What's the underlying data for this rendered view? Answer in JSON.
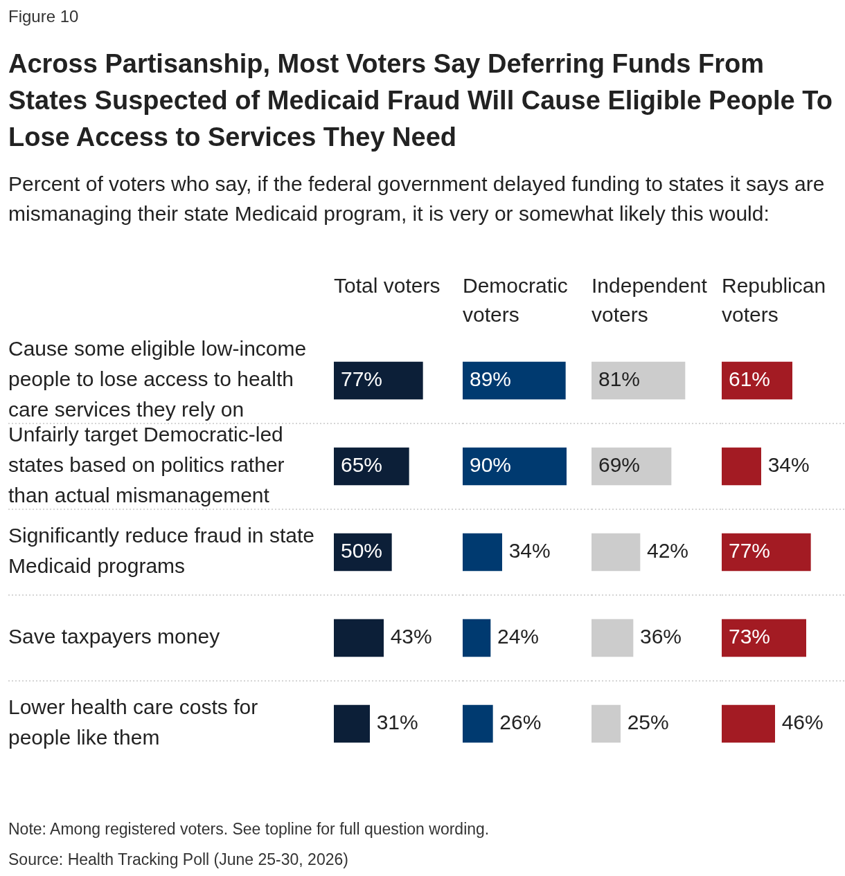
{
  "chart_data": [
    {
      "type": "bar",
      "orientation": "horizontal",
      "title": "Across Partisanship, Most Voters Say Deferring Funds From States Suspected of Medicaid Fraud Will Cause Eligible People To Lose Access to Services They Need",
      "subtitle": "Percent of voters who say, if the federal government delayed funding to states it says are mismanaging their state Medicaid program, it is very or somewhat likely this would:",
      "xlabel": "Total voters",
      "categories": [
        "Cause some eligible low-income people to lose access to health care services they rely on",
        "Unfairly target Democratic-led states based on politics rather than actual mismanagement",
        "Significantly reduce fraud in state Medicaid programs",
        "Save taxpayers money",
        "Lower health care costs for people like them"
      ],
      "values": [
        77,
        65,
        50,
        43,
        31
      ],
      "value_labels": [
        "77%",
        "65%",
        "50%",
        "43%",
        "31%"
      ],
      "color": "#0c1f38",
      "grid": "y",
      "tick_labels": "y",
      "annotations": [
        "Figure 10",
        "Note: Among registered voters. See topline for full question wording.",
        "Source: Health Tracking Poll (June 25-30, 2026)"
      ]
    },
    {
      "type": "bar",
      "orientation": "horizontal",
      "xlabel": "Democratic voters",
      "categories": [
        null,
        null,
        null,
        null,
        null
      ],
      "values": [
        89,
        90,
        34,
        24,
        26
      ],
      "value_labels": [
        "89%",
        "90%",
        "34%",
        "24%",
        "26%"
      ],
      "color": "#003a70",
      "grid": "y",
      "tick_labels": false
    },
    {
      "type": "bar",
      "orientation": "horizontal",
      "xlabel": "Independent voters",
      "categories": [
        null,
        null,
        null,
        null,
        null
      ],
      "values": [
        81,
        69,
        42,
        36,
        25
      ],
      "value_labels": [
        "81%",
        "69%",
        "42%",
        "36%",
        "25%"
      ],
      "color": "#cccccc",
      "grid": "y",
      "tick_labels": false
    },
    {
      "type": "bar",
      "orientation": "horizontal",
      "xlabel": "Republican voters",
      "categories": [
        null,
        null,
        null,
        null,
        null
      ],
      "values": [
        61,
        34,
        77,
        73,
        46
      ],
      "value_labels": [
        "61%",
        "34%",
        "77%",
        "73%",
        "46%"
      ],
      "color": "#a31b23",
      "grid": "y",
      "tick_labels": false
    }
  ]
}
